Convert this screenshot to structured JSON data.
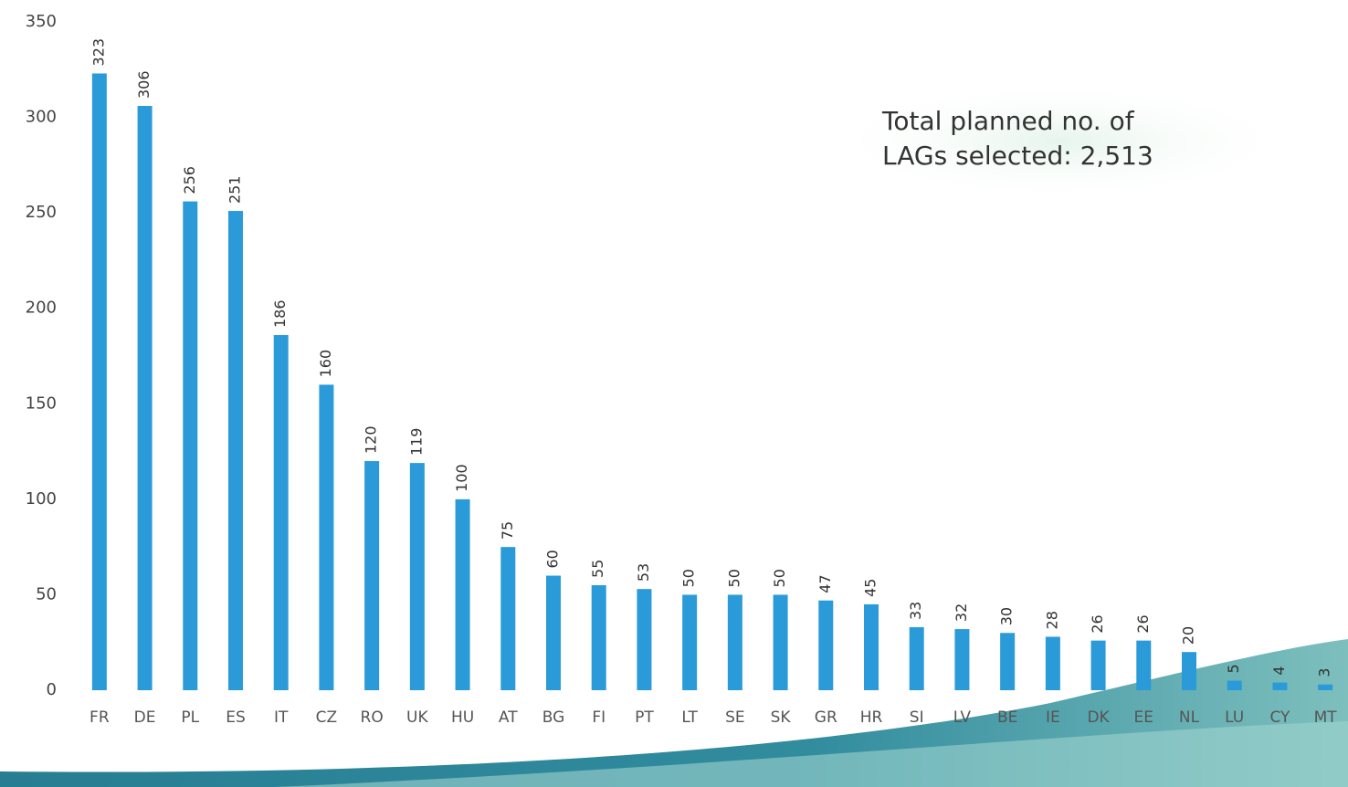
{
  "chart_data": {
    "type": "bar",
    "categories": [
      "FR",
      "DE",
      "PL",
      "ES",
      "IT",
      "CZ",
      "RO",
      "UK",
      "HU",
      "AT",
      "BG",
      "FI",
      "PT",
      "LT",
      "SE",
      "SK",
      "GR",
      "HR",
      "SI",
      "LV",
      "BE",
      "IE",
      "DK",
      "EE",
      "NL",
      "LU",
      "CY",
      "MT"
    ],
    "values": [
      323,
      306,
      256,
      251,
      186,
      160,
      120,
      119,
      100,
      75,
      60,
      55,
      53,
      50,
      50,
      50,
      47,
      45,
      33,
      32,
      30,
      28,
      26,
      26,
      20,
      5,
      4,
      3
    ],
    "color": "#2a9bd8",
    "ylim": [
      0,
      350
    ],
    "yticks": [
      0,
      50,
      100,
      150,
      200,
      250,
      300,
      350
    ],
    "grid": false,
    "annotation": [
      "Total planned no. of",
      "LAGs selected: 2,513"
    ]
  }
}
